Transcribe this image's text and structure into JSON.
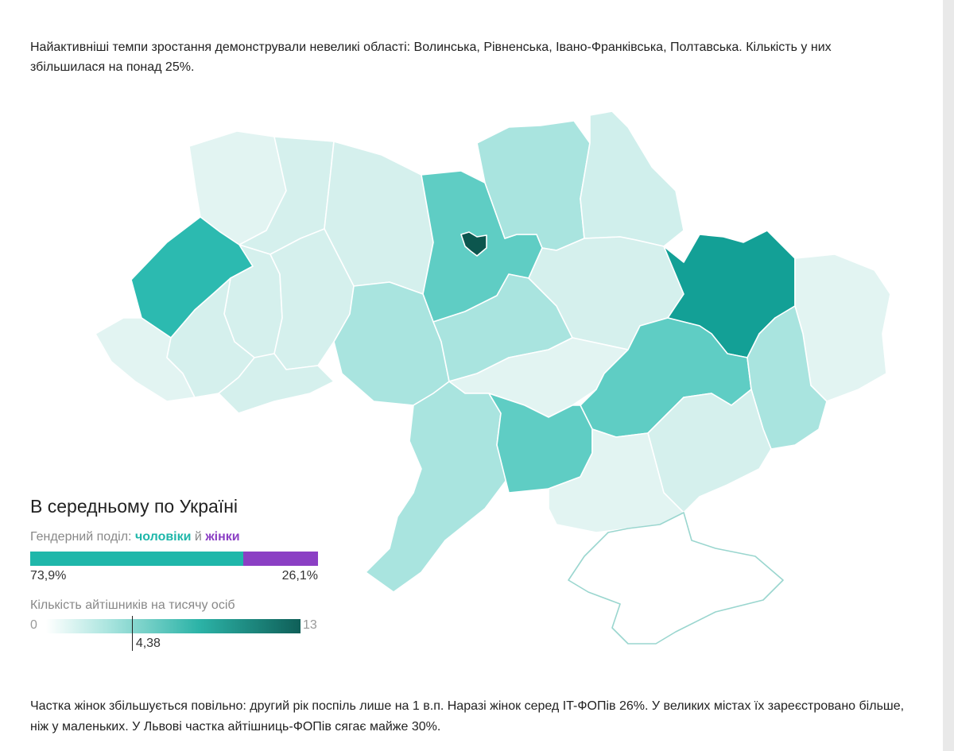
{
  "text": {
    "intro": "Найактивніші темпи зростання демонстрували невеликі області: Волинська, Рівненська, Івано-Франківська, Полтавська. Кількість у них збільшилася на понад 25%.",
    "outro": "Частка жінок збільшується повільно: другий рік поспіль лише на 1 в.п. Наразі жінок серед IT-ФОПів 26%. У великих містах їх зареєстровано більше, ніж у маленьких. У Львові частка айтішниць-ФОПів сягає майже 30%."
  },
  "legend": {
    "title": "В середньому по Україні",
    "gender": {
      "label_prefix": "Гендерний поділ:",
      "men_label": "чоловіки",
      "conjunction": "й",
      "women_label": "жінки",
      "men_pct_text": "73,9%",
      "women_pct_text": "26,1%",
      "men_share": 73.9,
      "women_share": 26.1,
      "men_color": "#1fb7aa",
      "women_color": "#8b3fc4"
    },
    "density": {
      "label": "Кількість айтішників на тисячу осіб",
      "min_text": "0",
      "max_text": "13",
      "min": 0,
      "max": 13,
      "value": 4.38,
      "value_text": "4,38"
    }
  },
  "map": {
    "regions": [
      {
        "id": "volyn",
        "color": "#e2f4f2"
      },
      {
        "id": "rivne",
        "color": "#d5f0ed"
      },
      {
        "id": "zhytomyr",
        "color": "#d5f0ed"
      },
      {
        "id": "kyiv-oblast",
        "color": "#5fcdc4"
      },
      {
        "id": "kyiv-city",
        "color": "#0c564e"
      },
      {
        "id": "chernihiv",
        "color": "#a9e4df"
      },
      {
        "id": "sumy",
        "color": "#d0efec"
      },
      {
        "id": "lviv",
        "color": "#2cbab0"
      },
      {
        "id": "ternopil",
        "color": "#d5f0ed"
      },
      {
        "id": "khmelnytskyi",
        "color": "#d5f0ed"
      },
      {
        "id": "vinnytsia",
        "color": "#a9e4df"
      },
      {
        "id": "cherkasy",
        "color": "#a9e4df"
      },
      {
        "id": "poltava",
        "color": "#d5f0ed"
      },
      {
        "id": "kharkiv",
        "color": "#13a096"
      },
      {
        "id": "luhansk",
        "color": "#e2f4f2"
      },
      {
        "id": "zakarpattia",
        "color": "#e2f4f2"
      },
      {
        "id": "ivano-frankivsk",
        "color": "#d5f0ed"
      },
      {
        "id": "chernivtsi",
        "color": "#d5f0ed"
      },
      {
        "id": "kirovohrad",
        "color": "#e2f4f2"
      },
      {
        "id": "dnipropetrovsk",
        "color": "#5fcdc4"
      },
      {
        "id": "donetsk",
        "color": "#a9e4df"
      },
      {
        "id": "odesa",
        "color": "#a9e4df"
      },
      {
        "id": "mykolaiv",
        "color": "#5fcdc4"
      },
      {
        "id": "zaporizhzhia",
        "color": "#d5f0ed"
      },
      {
        "id": "kherson",
        "color": "#e2f4f2"
      },
      {
        "id": "crimea",
        "color": "#ffffff"
      }
    ]
  }
}
